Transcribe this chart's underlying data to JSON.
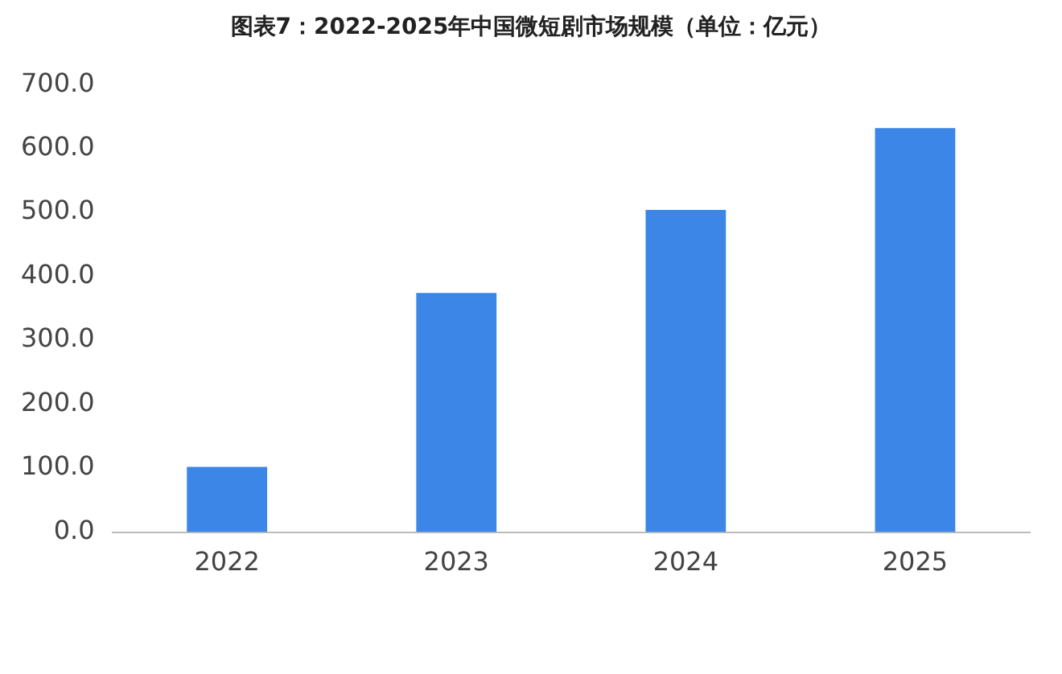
{
  "chart_data": {
    "type": "bar",
    "title": "图表7：2022-2025年中国微短剧市场规模（单位：亿元）",
    "categories": [
      "2022",
      "2023",
      "2024",
      "2025"
    ],
    "values": [
      102,
      374,
      504,
      632
    ],
    "color": "#3b86e6",
    "ylim": [
      0,
      700
    ],
    "yticks": [
      {
        "value": 0,
        "label": "0.0"
      },
      {
        "value": 100,
        "label": "100.0"
      },
      {
        "value": 200,
        "label": "200.0"
      },
      {
        "value": 300,
        "label": "300.0"
      },
      {
        "value": 400,
        "label": "400.0"
      },
      {
        "value": 500,
        "label": "500.0"
      },
      {
        "value": 600,
        "label": "600.0"
      },
      {
        "value": 700,
        "label": "700.0"
      }
    ],
    "grid": false,
    "legend": false
  }
}
